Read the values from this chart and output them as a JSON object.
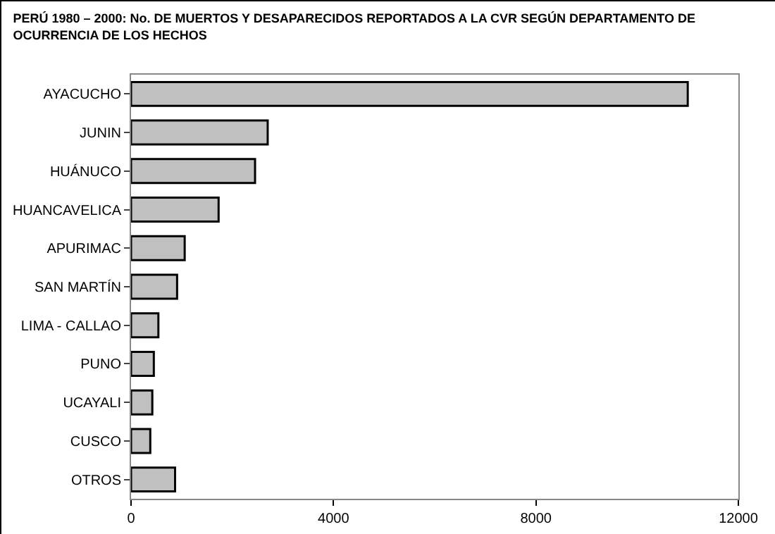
{
  "chart_data": {
    "type": "bar",
    "orientation": "horizontal",
    "title": "PERÚ 1980 – 2000: No. DE MUERTOS Y DESAPARECIDOS REPORTADOS A LA CVR SEGÚN DEPARTAMENTO DE OCURRENCIA DE LOS HECHOS",
    "categories": [
      "AYACUCHO",
      "JUNIN",
      "HUÁNUCO",
      "HUANCAVELICA",
      "APURIMAC",
      "SAN MARTÍN",
      "LIMA - CALLAO",
      "PUNO",
      "UCAYALI",
      "CUSCO",
      "OTROS"
    ],
    "values": [
      11000,
      2700,
      2450,
      1730,
      1060,
      910,
      540,
      450,
      420,
      380,
      870
    ],
    "color": "#c0c0c0",
    "xlim": [
      0,
      12000
    ],
    "xticks": [
      0,
      4000,
      8000,
      12000
    ],
    "grid": false
  }
}
